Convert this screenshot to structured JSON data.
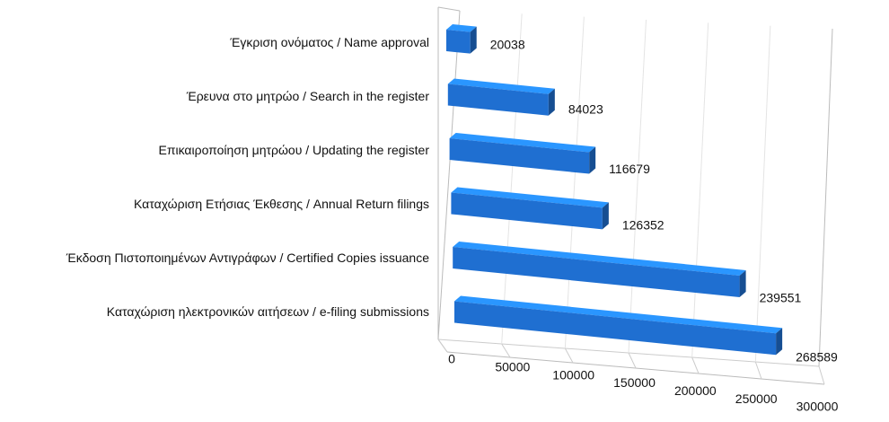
{
  "chart_data": {
    "type": "bar3d",
    "categories": [
      "Έγκριση ονόματος / Name approval",
      "Έρευνα στο μητρώο / Search in the register",
      "Επικαιροποίηση μητρώου / Updating the register",
      "Καταχώριση Ετήσιας Έκθεσης / Annual Return filings",
      "Έκδοση Πιστοποιημένων Αντιγράφων / Certified Copies issuance",
      "Καταχώριση ηλεκτρονικών αιτήσεων / e-filing submissions"
    ],
    "values": [
      20038,
      84023,
      116679,
      126352,
      239551,
      268589
    ],
    "color": "#1f6fd1",
    "xlim": [
      0,
      300000
    ],
    "xticks": [
      0,
      50000,
      100000,
      150000,
      200000,
      250000,
      300000
    ],
    "grid": true
  }
}
